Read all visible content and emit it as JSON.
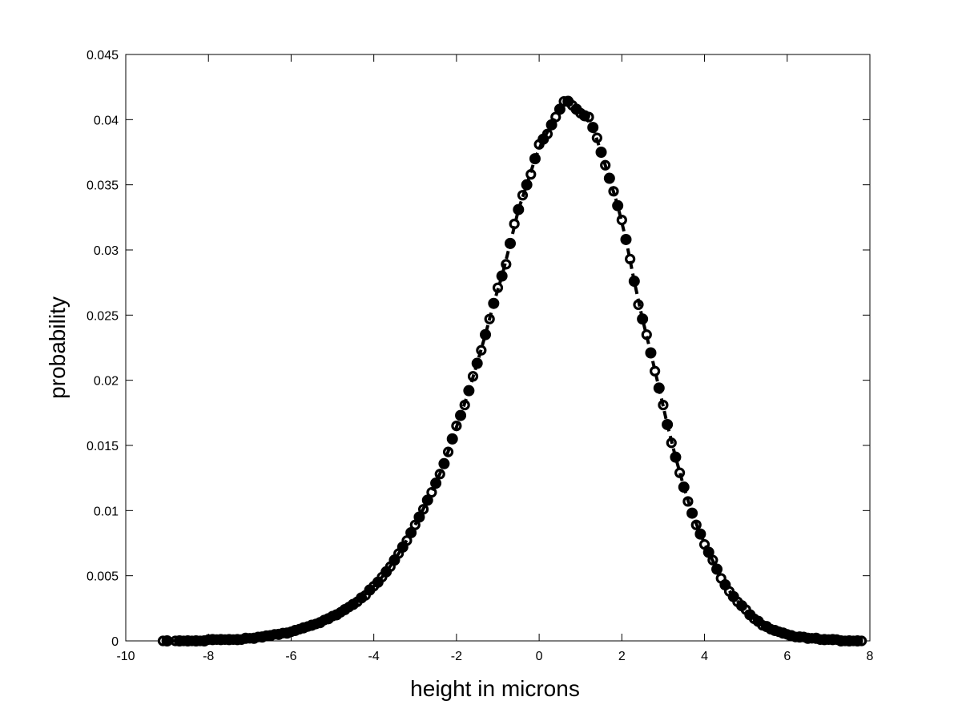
{
  "chart_data": {
    "type": "scatter",
    "title": "",
    "xlabel": "height in microns",
    "ylabel": "probability",
    "xlim": [
      -10,
      8
    ],
    "ylim": [
      0,
      0.045
    ],
    "xticks": [
      -10,
      -8,
      -6,
      -4,
      -2,
      0,
      2,
      4,
      6,
      8
    ],
    "xtick_labels": [
      "-10",
      "-8",
      "-6",
      "-4",
      "-2",
      "0",
      "2",
      "4",
      "6",
      "8"
    ],
    "yticks": [
      0,
      0.005,
      0.01,
      0.015,
      0.02,
      0.025,
      0.03,
      0.035,
      0.04,
      0.045
    ],
    "ytick_labels": [
      "0",
      "0.005",
      "0.01",
      "0.015",
      "0.02",
      "0.025",
      "0.03",
      "0.035",
      "0.04",
      "0.045"
    ],
    "grid": false,
    "series": [
      {
        "marker": "open-circle",
        "line": "none",
        "color": "#000000",
        "x": [
          -9.1,
          -8.8,
          -8.6,
          -8.4,
          -8.2,
          -8.0,
          -7.8,
          -7.6,
          -7.4,
          -7.2,
          -7.0,
          -6.8,
          -6.6,
          -6.4,
          -6.2,
          -6.0,
          -5.8,
          -5.6,
          -5.4,
          -5.2,
          -5.0,
          -4.8,
          -4.6,
          -4.4,
          -4.2,
          -4.0,
          -3.8,
          -3.6,
          -3.4,
          -3.2,
          -3.0,
          -2.8,
          -2.6,
          -2.4,
          -2.2,
          -2.0,
          -1.8,
          -1.6,
          -1.4,
          -1.2,
          -1.0,
          -0.8,
          -0.6,
          -0.4,
          -0.2,
          0.0,
          0.2,
          0.4,
          0.6,
          0.8,
          1.0,
          1.2,
          1.4,
          1.6,
          1.8,
          2.0,
          2.2,
          2.4,
          2.6,
          2.8,
          3.0,
          3.2,
          3.4,
          3.6,
          3.8,
          4.0,
          4.2,
          4.4,
          4.6,
          4.8,
          5.0,
          5.2,
          5.4,
          5.6,
          5.8,
          6.0,
          6.2,
          6.4,
          6.6,
          6.8,
          7.0,
          7.2,
          7.4,
          7.6,
          7.8
        ],
        "y": [
          0.0,
          0.0,
          0.0,
          0.0,
          0.0,
          0.0001,
          0.0001,
          0.0001,
          0.0001,
          0.0001,
          0.0002,
          0.0003,
          0.0004,
          0.0005,
          0.0006,
          0.0007,
          0.0009,
          0.0011,
          0.0013,
          0.0016,
          0.0019,
          0.0022,
          0.0026,
          0.003,
          0.0035,
          0.0042,
          0.0049,
          0.0057,
          0.0067,
          0.0077,
          0.0089,
          0.0101,
          0.0114,
          0.0128,
          0.0145,
          0.0165,
          0.0181,
          0.0203,
          0.0223,
          0.0247,
          0.0271,
          0.0289,
          0.032,
          0.0342,
          0.0358,
          0.0381,
          0.0389,
          0.0402,
          0.0414,
          0.0411,
          0.0405,
          0.0402,
          0.0386,
          0.0365,
          0.0345,
          0.0323,
          0.0293,
          0.0258,
          0.0235,
          0.0207,
          0.0181,
          0.0152,
          0.0129,
          0.0107,
          0.0089,
          0.0074,
          0.0062,
          0.0048,
          0.0038,
          0.003,
          0.0024,
          0.0017,
          0.0012,
          0.0009,
          0.0007,
          0.0005,
          0.0003,
          0.0003,
          0.0002,
          0.0001,
          0.0001,
          0.0001,
          0.0,
          0.0,
          0.0
        ]
      },
      {
        "marker": "filled-circle",
        "line": "dashed",
        "color": "#000000",
        "x": [
          -9.0,
          -8.7,
          -8.5,
          -8.3,
          -8.1,
          -7.9,
          -7.7,
          -7.5,
          -7.3,
          -7.1,
          -6.9,
          -6.7,
          -6.5,
          -6.3,
          -6.1,
          -5.9,
          -5.7,
          -5.5,
          -5.3,
          -5.1,
          -4.9,
          -4.7,
          -4.5,
          -4.3,
          -4.1,
          -3.9,
          -3.7,
          -3.5,
          -3.3,
          -3.1,
          -2.9,
          -2.7,
          -2.5,
          -2.3,
          -2.1,
          -1.9,
          -1.7,
          -1.5,
          -1.3,
          -1.1,
          -0.9,
          -0.7,
          -0.5,
          -0.3,
          -0.1,
          0.1,
          0.3,
          0.5,
          0.7,
          0.9,
          1.1,
          1.3,
          1.5,
          1.7,
          1.9,
          2.1,
          2.3,
          2.5,
          2.7,
          2.9,
          3.1,
          3.3,
          3.5,
          3.7,
          3.9,
          4.1,
          4.3,
          4.5,
          4.7,
          4.9,
          5.1,
          5.3,
          5.5,
          5.7,
          5.9,
          6.1,
          6.3,
          6.5,
          6.7,
          6.9,
          7.1,
          7.3,
          7.5,
          7.7
        ],
        "y": [
          0.0,
          0.0,
          0.0,
          0.0,
          0.0,
          0.0001,
          0.0001,
          0.0001,
          0.0001,
          0.0002,
          0.0002,
          0.0003,
          0.0004,
          0.0005,
          0.0006,
          0.0008,
          0.001,
          0.0012,
          0.0014,
          0.0017,
          0.002,
          0.0024,
          0.0028,
          0.0033,
          0.0039,
          0.0045,
          0.0053,
          0.0062,
          0.0072,
          0.0083,
          0.0095,
          0.0108,
          0.0121,
          0.0136,
          0.0155,
          0.0173,
          0.0192,
          0.0213,
          0.0235,
          0.0259,
          0.028,
          0.0305,
          0.0331,
          0.035,
          0.037,
          0.0385,
          0.0396,
          0.0408,
          0.0414,
          0.0408,
          0.0403,
          0.0394,
          0.0375,
          0.0355,
          0.0334,
          0.0308,
          0.0276,
          0.0247,
          0.0221,
          0.0194,
          0.0166,
          0.0141,
          0.0118,
          0.0098,
          0.0082,
          0.0068,
          0.0055,
          0.0043,
          0.0034,
          0.0027,
          0.002,
          0.0015,
          0.0011,
          0.0008,
          0.0006,
          0.0004,
          0.0003,
          0.0002,
          0.0002,
          0.0001,
          0.0001,
          0.0,
          0.0,
          0.0
        ]
      }
    ]
  }
}
